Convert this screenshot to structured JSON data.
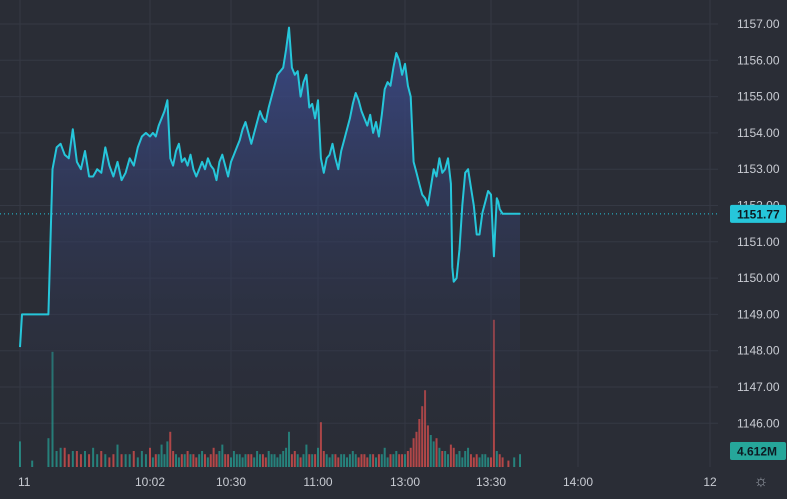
{
  "chart_data": {
    "type": "area",
    "title": "",
    "xlabel": "",
    "ylabel": "",
    "ylim": [
      1145.25,
      1157.25
    ],
    "y_ticks": [
      "1146.00",
      "1147.00",
      "1148.00",
      "1149.00",
      "1150.00",
      "1151.00",
      "1152.00",
      "1153.00",
      "1154.00",
      "1155.00",
      "1156.00",
      "1157.00"
    ],
    "x_ticks": [
      {
        "label": "11",
        "minute": 570
      },
      {
        "label": "10:02",
        "minute": 602
      },
      {
        "label": "10:30",
        "minute": 630
      },
      {
        "label": "11:00",
        "minute": 660
      },
      {
        "label": "13:00",
        "minute": 690
      },
      {
        "label": "13:30",
        "minute": 720
      },
      {
        "label": "14:00",
        "minute": 750
      },
      {
        "label": "12",
        "minute": 795
      }
    ],
    "x_range": [
      570,
      817
    ],
    "grid": true,
    "last_price": 1151.77,
    "last_price_label": "1151.77",
    "volume_label": "4.612M",
    "colors": {
      "line": "#26c6da",
      "area_top": "#3b4a8a",
      "area_bottom": "#2a2d36",
      "up_volume": "#26a69a",
      "down_volume": "#ef5350",
      "background": "#2a2d36",
      "grid": "#353944"
    },
    "price_series": [
      [
        570,
        1148.1
      ],
      [
        570.5,
        1149.0
      ],
      [
        573,
        1149.0
      ],
      [
        577,
        1149.0
      ],
      [
        578,
        1153.0
      ],
      [
        579,
        1153.6
      ],
      [
        580,
        1153.7
      ],
      [
        581,
        1153.4
      ],
      [
        582,
        1153.3
      ],
      [
        583,
        1154.1
      ],
      [
        584,
        1153.2
      ],
      [
        585,
        1153.0
      ],
      [
        586,
        1153.5
      ],
      [
        587,
        1152.8
      ],
      [
        588,
        1152.8
      ],
      [
        589,
        1153.0
      ],
      [
        590,
        1152.9
      ],
      [
        591,
        1153.6
      ],
      [
        592,
        1153.1
      ],
      [
        593,
        1152.8
      ],
      [
        594,
        1153.2
      ],
      [
        595,
        1152.7
      ],
      [
        596,
        1152.9
      ],
      [
        597,
        1153.3
      ],
      [
        598,
        1153.1
      ],
      [
        599,
        1153.6
      ],
      [
        600,
        1153.9
      ],
      [
        601,
        1154.0
      ],
      [
        602,
        1153.9
      ],
      [
        603,
        1154.0
      ],
      [
        604,
        1153.9
      ],
      [
        605,
        1154.2
      ],
      [
        606,
        1154.4
      ],
      [
        607,
        1154.6
      ],
      [
        608,
        1154.9
      ],
      [
        609,
        1153.3
      ],
      [
        610,
        1153.1
      ],
      [
        611,
        1153.5
      ],
      [
        612,
        1153.7
      ],
      [
        613,
        1153.2
      ],
      [
        614,
        1153.3
      ],
      [
        615,
        1153.1
      ],
      [
        616,
        1153.4
      ],
      [
        617,
        1153.0
      ],
      [
        618,
        1152.8
      ],
      [
        619,
        1153.0
      ],
      [
        620,
        1153.2
      ],
      [
        621,
        1153.0
      ],
      [
        622,
        1153.3
      ],
      [
        623,
        1153.1
      ],
      [
        624,
        1153.0
      ],
      [
        625,
        1152.7
      ],
      [
        626,
        1153.2
      ],
      [
        627,
        1153.4
      ],
      [
        628,
        1153.1
      ],
      [
        629,
        1152.8
      ],
      [
        630,
        1153.2
      ],
      [
        631,
        1153.4
      ],
      [
        632,
        1153.6
      ],
      [
        633,
        1153.8
      ],
      [
        634,
        1154.1
      ],
      [
        635,
        1154.3
      ],
      [
        636,
        1154.0
      ],
      [
        637,
        1153.7
      ],
      [
        638,
        1154.0
      ],
      [
        639,
        1154.3
      ],
      [
        640,
        1154.6
      ],
      [
        641,
        1154.4
      ],
      [
        642,
        1154.3
      ],
      [
        643,
        1154.7
      ],
      [
        644,
        1155.0
      ],
      [
        645,
        1155.3
      ],
      [
        646,
        1155.6
      ],
      [
        647,
        1155.7
      ],
      [
        648,
        1155.8
      ],
      [
        649,
        1156.3
      ],
      [
        650,
        1156.9
      ],
      [
        651,
        1155.8
      ],
      [
        652,
        1155.6
      ],
      [
        653,
        1155.7
      ],
      [
        654,
        1155.0
      ],
      [
        655,
        1155.4
      ],
      [
        656,
        1155.6
      ],
      [
        657,
        1154.7
      ],
      [
        658,
        1154.8
      ],
      [
        659,
        1154.4
      ],
      [
        660,
        1154.9
      ],
      [
        661,
        1153.3
      ],
      [
        662,
        1152.9
      ],
      [
        663,
        1153.3
      ],
      [
        664,
        1153.4
      ],
      [
        665,
        1153.7
      ],
      [
        666,
        1153.3
      ],
      [
        667,
        1153.0
      ],
      [
        668,
        1153.5
      ],
      [
        669,
        1153.8
      ],
      [
        670,
        1154.1
      ],
      [
        671,
        1154.4
      ],
      [
        672,
        1154.8
      ],
      [
        673,
        1155.1
      ],
      [
        674,
        1154.9
      ],
      [
        675,
        1154.6
      ],
      [
        676,
        1154.4
      ],
      [
        677,
        1154.2
      ],
      [
        678,
        1154.5
      ],
      [
        679,
        1154.0
      ],
      [
        680,
        1154.3
      ],
      [
        681,
        1153.9
      ],
      [
        682,
        1154.5
      ],
      [
        683,
        1155.2
      ],
      [
        684,
        1155.4
      ],
      [
        685,
        1155.3
      ],
      [
        686,
        1155.8
      ],
      [
        687,
        1156.2
      ],
      [
        688,
        1156.0
      ],
      [
        689,
        1155.6
      ],
      [
        690,
        1155.9
      ],
      [
        691,
        1155.3
      ],
      [
        692,
        1155.0
      ],
      [
        693,
        1153.2
      ],
      [
        694,
        1152.9
      ],
      [
        695,
        1152.6
      ],
      [
        696,
        1152.3
      ],
      [
        697,
        1152.2
      ],
      [
        698,
        1152.0
      ],
      [
        699,
        1152.5
      ],
      [
        700,
        1153.0
      ],
      [
        701,
        1152.8
      ],
      [
        702,
        1153.3
      ],
      [
        703,
        1152.9
      ],
      [
        704,
        1153.0
      ],
      [
        705,
        1153.3
      ],
      [
        706,
        1152.6
      ],
      [
        706.5,
        1150.3
      ],
      [
        707,
        1149.9
      ],
      [
        708,
        1150.0
      ],
      [
        709,
        1150.8
      ],
      [
        710,
        1152.0
      ],
      [
        711,
        1152.9
      ],
      [
        712,
        1153.0
      ],
      [
        713,
        1152.5
      ],
      [
        714,
        1152.0
      ],
      [
        715,
        1151.2
      ],
      [
        716,
        1151.2
      ],
      [
        717,
        1151.8
      ],
      [
        718,
        1152.1
      ],
      [
        719,
        1152.4
      ],
      [
        720,
        1152.3
      ],
      [
        721,
        1150.6
      ],
      [
        722,
        1152.2
      ],
      [
        722.5,
        1152.1
      ],
      [
        723,
        1151.9
      ],
      [
        724,
        1151.77
      ],
      [
        730,
        1151.77
      ]
    ],
    "volume_series": [
      [
        570,
        0.8
      ],
      [
        573,
        0.2
      ],
      [
        577,
        0.9
      ],
      [
        578,
        3.6
      ],
      [
        579,
        0.5
      ],
      [
        580,
        0.6
      ],
      [
        581,
        0.6
      ],
      [
        582,
        0.4
      ],
      [
        583,
        0.5
      ],
      [
        584,
        0.5
      ],
      [
        585,
        0.4
      ],
      [
        586,
        0.5
      ],
      [
        587,
        0.4
      ],
      [
        588,
        0.6
      ],
      [
        589,
        0.4
      ],
      [
        590,
        0.5
      ],
      [
        591,
        0.4
      ],
      [
        592,
        0.3
      ],
      [
        593,
        0.4
      ],
      [
        594,
        0.7
      ],
      [
        595,
        0.4
      ],
      [
        596,
        0.4
      ],
      [
        597,
        0.4
      ],
      [
        598,
        0.5
      ],
      [
        599,
        0.3
      ],
      [
        600,
        0.5
      ],
      [
        601,
        0.4
      ],
      [
        602,
        0.6
      ],
      [
        603,
        0.3
      ],
      [
        604,
        0.4
      ],
      [
        605,
        0.4
      ],
      [
        606,
        0.7
      ],
      [
        607,
        0.4
      ],
      [
        608,
        0.8
      ],
      [
        609,
        1.1
      ],
      [
        610,
        0.5
      ],
      [
        611,
        0.4
      ],
      [
        612,
        0.3
      ],
      [
        613,
        0.4
      ],
      [
        614,
        0.4
      ],
      [
        615,
        0.5
      ],
      [
        616,
        0.4
      ],
      [
        617,
        0.4
      ],
      [
        618,
        0.3
      ],
      [
        619,
        0.4
      ],
      [
        620,
        0.5
      ],
      [
        621,
        0.4
      ],
      [
        622,
        0.3
      ],
      [
        623,
        0.4
      ],
      [
        624,
        0.6
      ],
      [
        625,
        0.4
      ],
      [
        626,
        0.5
      ],
      [
        627,
        0.7
      ],
      [
        628,
        0.4
      ],
      [
        629,
        0.4
      ],
      [
        630,
        0.3
      ],
      [
        631,
        0.5
      ],
      [
        632,
        0.4
      ],
      [
        633,
        0.4
      ],
      [
        634,
        0.3
      ],
      [
        635,
        0.4
      ],
      [
        636,
        0.4
      ],
      [
        637,
        0.4
      ],
      [
        638,
        0.3
      ],
      [
        639,
        0.5
      ],
      [
        640,
        0.4
      ],
      [
        641,
        0.4
      ],
      [
        642,
        0.3
      ],
      [
        643,
        0.5
      ],
      [
        644,
        0.4
      ],
      [
        645,
        0.4
      ],
      [
        646,
        0.3
      ],
      [
        647,
        0.4
      ],
      [
        648,
        0.5
      ],
      [
        649,
        0.6
      ],
      [
        650,
        1.1
      ],
      [
        651,
        0.4
      ],
      [
        652,
        0.5
      ],
      [
        653,
        0.4
      ],
      [
        654,
        0.3
      ],
      [
        655,
        0.4
      ],
      [
        656,
        0.7
      ],
      [
        657,
        0.4
      ],
      [
        658,
        0.4
      ],
      [
        659,
        0.4
      ],
      [
        660,
        0.6
      ],
      [
        661,
        1.4
      ],
      [
        662,
        0.5
      ],
      [
        663,
        0.4
      ],
      [
        664,
        0.3
      ],
      [
        665,
        0.4
      ],
      [
        666,
        0.4
      ],
      [
        667,
        0.3
      ],
      [
        668,
        0.4
      ],
      [
        669,
        0.4
      ],
      [
        670,
        0.3
      ],
      [
        671,
        0.4
      ],
      [
        672,
        0.5
      ],
      [
        673,
        0.4
      ],
      [
        674,
        0.3
      ],
      [
        675,
        0.4
      ],
      [
        676,
        0.4
      ],
      [
        677,
        0.3
      ],
      [
        678,
        0.4
      ],
      [
        679,
        0.4
      ],
      [
        680,
        0.3
      ],
      [
        681,
        0.4
      ],
      [
        682,
        0.4
      ],
      [
        683,
        0.6
      ],
      [
        684,
        0.3
      ],
      [
        685,
        0.4
      ],
      [
        686,
        0.4
      ],
      [
        687,
        0.5
      ],
      [
        688,
        0.4
      ],
      [
        689,
        0.4
      ],
      [
        690,
        0.4
      ],
      [
        691,
        0.5
      ],
      [
        692,
        0.6
      ],
      [
        693,
        0.9
      ],
      [
        694,
        1.1
      ],
      [
        695,
        1.5
      ],
      [
        696,
        1.9
      ],
      [
        697,
        2.4
      ],
      [
        698,
        1.3
      ],
      [
        699,
        1.0
      ],
      [
        700,
        0.8
      ],
      [
        701,
        0.9
      ],
      [
        702,
        0.6
      ],
      [
        703,
        0.5
      ],
      [
        704,
        0.5
      ],
      [
        705,
        0.4
      ],
      [
        706,
        0.7
      ],
      [
        707,
        0.6
      ],
      [
        708,
        0.4
      ],
      [
        709,
        0.5
      ],
      [
        710,
        0.3
      ],
      [
        711,
        0.5
      ],
      [
        712,
        0.6
      ],
      [
        713,
        0.4
      ],
      [
        714,
        0.3
      ],
      [
        715,
        0.4
      ],
      [
        716,
        0.3
      ],
      [
        717,
        0.4
      ],
      [
        718,
        0.4
      ],
      [
        719,
        0.3
      ],
      [
        720,
        0.3
      ],
      [
        721,
        4.6
      ],
      [
        722,
        0.5
      ],
      [
        723,
        0.4
      ],
      [
        724,
        0.3
      ],
      [
        726,
        0.2
      ],
      [
        728,
        0.3
      ],
      [
        730,
        0.4
      ]
    ]
  }
}
